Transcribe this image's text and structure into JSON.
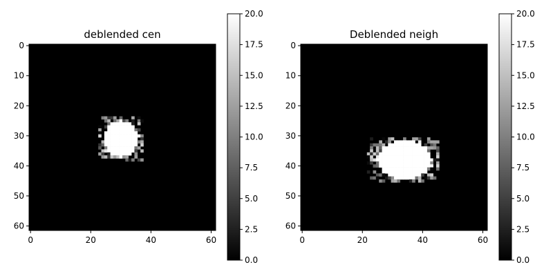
{
  "chart_data": [
    {
      "type": "heatmap",
      "title": "deblended cen",
      "colormap": "gray",
      "image_shape": [
        62,
        62
      ],
      "x_range": [
        0,
        61
      ],
      "y_range": [
        0,
        61
      ],
      "y_inverted": true,
      "x_ticks": [
        0,
        20,
        40,
        60
      ],
      "y_ticks": [
        0,
        10,
        20,
        30,
        40,
        50,
        60
      ],
      "colorbar": {
        "range": [
          0,
          20
        ],
        "ticks": [
          "0.0",
          "2.5",
          "5.0",
          "7.5",
          "10.0",
          "12.5",
          "15.0",
          "17.5",
          "20.0"
        ]
      },
      "source": {
        "shape": "ellipse",
        "center": [
          30,
          31
        ],
        "radius_x": 5.5,
        "radius_y": 6,
        "peak_value": 20,
        "speckle_rows": [
          24,
          38
        ],
        "speckle_cols": [
          23,
          37
        ]
      }
    },
    {
      "type": "heatmap",
      "title": "Deblended neigh",
      "colormap": "gray",
      "image_shape": [
        62,
        62
      ],
      "x_range": [
        0,
        61
      ],
      "y_range": [
        0,
        61
      ],
      "y_inverted": true,
      "x_ticks": [
        0,
        20,
        40,
        60
      ],
      "y_ticks": [
        0,
        10,
        20,
        30,
        40,
        50,
        60
      ],
      "colorbar": {
        "range": [
          0,
          20
        ],
        "ticks": [
          "0.0",
          "2.5",
          "5.0",
          "7.5",
          "10.0",
          "12.5",
          "15.0",
          "17.5",
          "20.0"
        ]
      },
      "source": {
        "shape": "ellipse",
        "center": [
          34,
          38
        ],
        "radius_x": 9,
        "radius_y": 6.5,
        "peak_value": 20,
        "speckle_rows": [
          31,
          45
        ],
        "speckle_cols": [
          22,
          45
        ]
      }
    }
  ]
}
